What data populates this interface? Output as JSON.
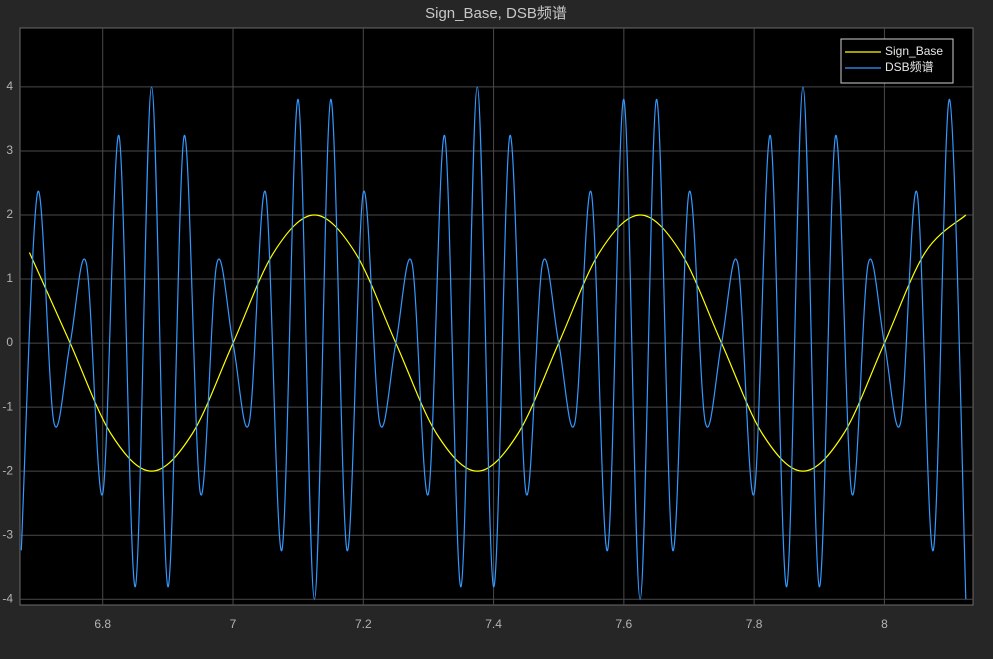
{
  "chart_data": {
    "type": "line",
    "title": "Sign_Base, DSB频谱",
    "xlim": [
      6.673,
      8.136
    ],
    "ylim": [
      -4.09,
      4.92
    ],
    "xticks": [
      6.8,
      7,
      7.2,
      7.4,
      7.6,
      7.8,
      8
    ],
    "yticks": [
      -4,
      -3,
      -2,
      -1,
      0,
      1,
      2,
      3,
      4
    ],
    "grid": true,
    "legend": "northeast",
    "series": [
      {
        "name": "Sign_Base",
        "color": "#ffff00",
        "x": [
          6.6875,
          6.75,
          6.8125,
          6.875,
          6.9375,
          7,
          7.0625,
          7.125,
          7.1875,
          7.25,
          7.3125,
          7.375,
          7.4375,
          7.5,
          7.5625,
          7.625,
          7.6875,
          7.75,
          7.8125,
          7.875,
          7.9375,
          8,
          8.0625,
          8.125
        ],
        "values": [
          1.414,
          0,
          -1.414,
          -2,
          -1.414,
          0,
          1.414,
          2,
          1.414,
          0,
          -1.414,
          -2,
          -1.414,
          0,
          1.414,
          2,
          1.414,
          0,
          -1.414,
          -2,
          -1.414,
          0,
          1.414,
          2
        ]
      },
      {
        "name": "DSB频谱",
        "color": "#3399ff",
        "x": [
          6.675,
          6.7,
          6.725,
          6.75,
          6.775,
          6.8,
          6.825,
          6.85,
          6.875,
          6.9,
          6.925,
          6.95,
          6.975,
          7,
          7.025,
          7.05,
          7.075,
          7.1,
          7.125,
          7.15,
          7.175,
          7.2,
          7.225,
          7.25,
          7.275,
          7.3,
          7.325,
          7.35,
          7.375,
          7.4,
          7.425,
          7.45,
          7.475,
          7.5,
          7.525,
          7.55,
          7.575,
          7.6,
          7.625,
          7.65,
          7.675,
          7.7,
          7.725,
          7.75,
          7.775,
          7.8,
          7.825,
          7.85,
          7.875,
          7.9,
          7.925,
          7.95,
          7.975,
          8,
          8.025,
          8.05,
          8.075,
          8.1,
          8.125
        ],
        "values": [
          -3.236,
          2.351,
          -1.236,
          0,
          1.236,
          -2.351,
          3.236,
          -3.804,
          4,
          -3.804,
          3.236,
          -2.351,
          1.236,
          0,
          -1.236,
          2.351,
          -3.236,
          3.804,
          -4,
          3.804,
          -3.236,
          2.351,
          -1.236,
          0,
          1.236,
          -2.351,
          3.236,
          -3.804,
          4,
          -3.804,
          3.236,
          -2.351,
          1.236,
          0,
          -1.236,
          2.351,
          -3.236,
          3.804,
          -4,
          3.804,
          -3.236,
          2.351,
          -1.236,
          0,
          1.236,
          -2.351,
          3.236,
          -3.804,
          4,
          -3.804,
          3.236,
          -2.351,
          1.236,
          0,
          -1.236,
          2.351,
          -3.236,
          3.804,
          -4
        ]
      }
    ]
  }
}
